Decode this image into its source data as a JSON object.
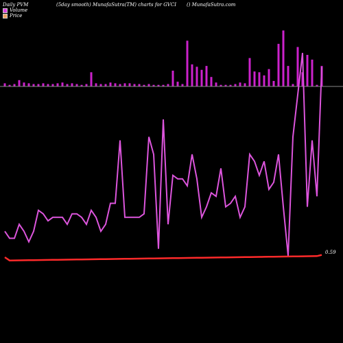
{
  "header": {
    "left": "Daily PVM",
    "center": "(5day smooth) MunafaSutra(TM) charts for GVCI",
    "right": "() MunafaSutra.com"
  },
  "legend": [
    {
      "label": "Volume",
      "color": "#e040e0"
    },
    {
      "label": "Price",
      "color": "#f0a060"
    }
  ],
  "last_value_label": "0.59",
  "chart_data": {
    "type": "bar+line",
    "colors": {
      "volume_bars": "#cc22cc",
      "volume_line": "#dd55dd",
      "price_line": "#ff2a2a",
      "baseline": "#888888"
    },
    "volume_bars": [
      4,
      2,
      3,
      8,
      5,
      4,
      3,
      3,
      4,
      3,
      3,
      4,
      5,
      3,
      4,
      3,
      2,
      3,
      18,
      4,
      3,
      3,
      5,
      4,
      3,
      4,
      4,
      3,
      3,
      2,
      3,
      2,
      2,
      2,
      3,
      20,
      6,
      3,
      58,
      28,
      25,
      21,
      26,
      12,
      5,
      2,
      2,
      2,
      3,
      5,
      4,
      36,
      19,
      18,
      14,
      22,
      7,
      54,
      71,
      26,
      3,
      50,
      18,
      40,
      34,
      2,
      26
    ],
    "volume_line": [
      8,
      6,
      6,
      10,
      8,
      5,
      8,
      14,
      13,
      11,
      12,
      12,
      12,
      10,
      13,
      13,
      12,
      10,
      14,
      12,
      8,
      10,
      16,
      16,
      34,
      12,
      12,
      12,
      12,
      13,
      35,
      30,
      3,
      40,
      10,
      24,
      23,
      23,
      21,
      30,
      23,
      12,
      15,
      19,
      18,
      26,
      15,
      16,
      18,
      12,
      15,
      30,
      28,
      24,
      28,
      20,
      22,
      30,
      15,
      1,
      35,
      47,
      59,
      15,
      34,
      18,
      55
    ],
    "price_line": [
      5,
      2,
      2,
      2,
      2,
      2,
      2,
      2,
      2,
      2,
      2,
      2,
      2,
      2,
      2,
      2,
      2,
      2,
      2,
      2,
      2,
      2,
      2,
      2,
      2,
      2,
      2,
      2,
      2,
      2,
      2,
      2,
      2,
      2,
      2,
      2,
      2,
      2,
      2,
      2,
      2,
      2,
      2,
      2,
      2,
      2,
      2,
      2,
      2,
      2,
      2,
      2,
      2,
      2,
      2,
      2,
      2,
      2,
      2,
      2,
      2,
      2,
      2,
      2,
      2,
      2,
      3
    ]
  }
}
